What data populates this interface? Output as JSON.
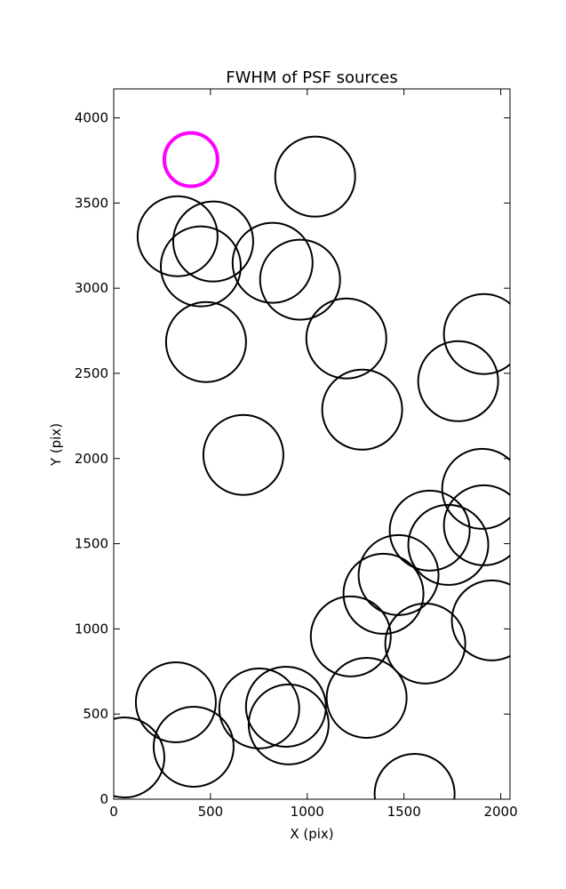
{
  "chart_data": {
    "type": "scatter",
    "title": "FWHM of PSF sources",
    "x_label": "X (pix)",
    "y_label": "Y (pix)",
    "xlim": [
      0,
      2048
    ],
    "ylim": [
      0,
      4170
    ],
    "xticks": [
      0,
      500,
      1000,
      1500,
      2000
    ],
    "yticks": [
      0,
      500,
      1000,
      1500,
      2000,
      2500,
      3000,
      3500,
      4000
    ],
    "grid": false,
    "series": [
      {
        "color": "#ff00ff",
        "x": [
          399
        ],
        "y": [
          3755
        ]
      },
      {
        "color": "#000000",
        "x": [
          1041,
          330,
          514,
          450,
          821,
          963,
          477,
          1202,
          1913,
          1780,
          1284,
          670,
          1904,
          1913,
          1633,
          1729,
          1472,
          1394,
          1954,
          1225,
          1610,
          321,
          1307,
          752,
          890,
          904,
          413,
          55,
          1555
        ],
        "y": [
          3655,
          3305,
          3274,
          3128,
          3149,
          3050,
          2684,
          2705,
          2731,
          2454,
          2287,
          2021,
          1822,
          1608,
          1577,
          1493,
          1316,
          1206,
          1050,
          956,
          914,
          569,
          595,
          533,
          543,
          439,
          308,
          245,
          31
        ]
      }
    ]
  }
}
